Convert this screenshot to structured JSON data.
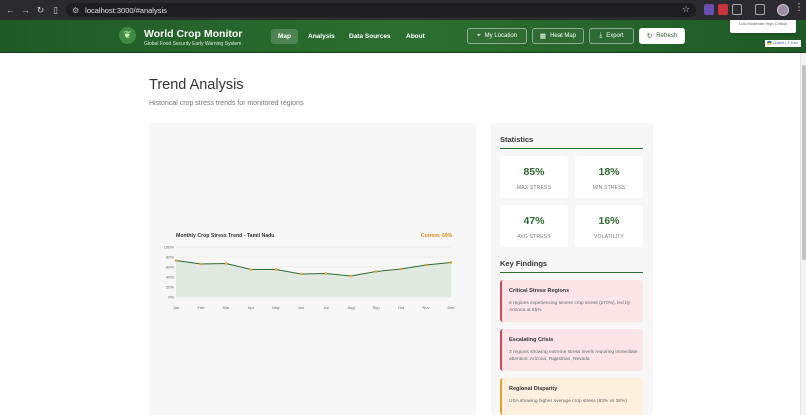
{
  "browser": {
    "url": "localhost:3000/#analysis",
    "icons": [
      "back-arrow-icon",
      "forward-arrow-icon",
      "reload-icon",
      "sidebar-icon",
      "site-info-icon",
      "star-icon"
    ]
  },
  "header": {
    "title": "World Crop Monitor",
    "subtitle": "Global Food Security Early Warning System",
    "logo_icon": "leaf-shield-icon",
    "nav": [
      {
        "label": "Map",
        "active": true
      },
      {
        "label": "Analysis",
        "active": false
      },
      {
        "label": "Data Sources",
        "active": false
      },
      {
        "label": "About",
        "active": false
      }
    ],
    "buttons": {
      "my_location": "My Location",
      "heat_map": "Heat Map",
      "export": "Export",
      "refresh": "Refresh"
    },
    "colors": {
      "header_bg": "#2c6e30",
      "accent": "#2f6b33"
    }
  },
  "map_overlay": {
    "legend_text": "Low Moderate High Critical",
    "attribution": "🇺🇦 Leaflet | © Esri"
  },
  "page": {
    "title": "Trend Analysis",
    "subtitle": "Historical crop stress trends for monitored regions"
  },
  "chart": {
    "title": "Monthly Crop Stress Trend - Tamil Nadu",
    "current": "Current: 69%"
  },
  "chart_data": {
    "type": "area",
    "title": "Monthly Crop Stress Trend - Tamil Nadu",
    "categories": [
      "Jan",
      "Feb",
      "Mar",
      "Apr",
      "May",
      "Jun",
      "Jul",
      "Aug",
      "Sep",
      "Oct",
      "Nov",
      "Dec"
    ],
    "values": [
      73,
      66,
      67,
      55,
      55,
      46,
      47,
      42,
      51,
      56,
      64,
      69
    ],
    "y_ticks": [
      "0%",
      "20%",
      "40%",
      "60%",
      "80%",
      "100%"
    ],
    "ylim": [
      0,
      100
    ],
    "grid": true,
    "colors": {
      "line": "#2f6b33",
      "fill": "#dfe8df",
      "point": "#e8a530"
    }
  },
  "statistics": {
    "heading": "Statistics",
    "items": [
      {
        "value": "85%",
        "label": "MAX STRESS"
      },
      {
        "value": "18%",
        "label": "MIN STRESS"
      },
      {
        "value": "47%",
        "label": "AVG STRESS"
      },
      {
        "value": "16%",
        "label": "VOLATILITY"
      }
    ]
  },
  "findings": {
    "heading": "Key Findings",
    "items": [
      {
        "title": "Critical Stress Regions",
        "text": "6 regions experiencing severe crop stress (≥70%), led by Arizona at 85%",
        "tone": "red"
      },
      {
        "title": "Escalating Crisis",
        "text": "3 regions showing extreme stress levels requiring immediate attention: Arizona, Rajasthan, Nevada",
        "tone": "red"
      },
      {
        "title": "Regional Disparity",
        "text": "USA showing higher average crop stress (83% vs 36%)",
        "tone": "orange"
      }
    ]
  }
}
